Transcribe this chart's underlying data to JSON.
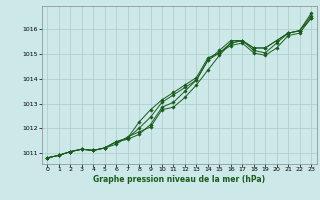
{
  "xlabel": "Graphe pression niveau de la mer (hPa)",
  "background_color": "#cce8e8",
  "grid_color": "#aacccc",
  "line_color": "#1a5c1a",
  "xlim": [
    -0.5,
    23.5
  ],
  "ylim": [
    1010.55,
    1016.95
  ],
  "yticks": [
    1011,
    1012,
    1013,
    1014,
    1015,
    1016
  ],
  "xticks": [
    0,
    1,
    2,
    3,
    4,
    5,
    6,
    7,
    8,
    9,
    10,
    11,
    12,
    13,
    14,
    15,
    16,
    17,
    18,
    19,
    20,
    21,
    22,
    23
  ],
  "series": [
    [
      1010.8,
      1010.9,
      1011.05,
      1011.15,
      1011.1,
      1011.2,
      1011.45,
      1011.55,
      1011.75,
      1012.15,
      1012.85,
      1013.05,
      1013.5,
      1013.95,
      1014.75,
      1015.15,
      1015.55,
      1015.55,
      1015.25,
      1015.25,
      1015.55,
      1015.85,
      1015.95,
      1016.55
    ],
    [
      1010.8,
      1010.9,
      1011.05,
      1011.15,
      1011.1,
      1011.2,
      1011.45,
      1011.6,
      1012.0,
      1012.45,
      1013.05,
      1013.35,
      1013.65,
      1013.95,
      1014.75,
      1015.05,
      1015.45,
      1015.55,
      1015.15,
      1015.05,
      1015.45,
      1015.85,
      1015.95,
      1016.45
    ],
    [
      1010.8,
      1010.9,
      1011.05,
      1011.15,
      1011.1,
      1011.2,
      1011.45,
      1011.6,
      1012.25,
      1012.75,
      1013.15,
      1013.45,
      1013.75,
      1014.05,
      1014.85,
      1015.05,
      1015.35,
      1015.45,
      1015.05,
      1014.95,
      1015.25,
      1015.75,
      1015.85,
      1016.45
    ],
    [
      1010.8,
      1010.9,
      1011.05,
      1011.15,
      1011.1,
      1011.2,
      1011.35,
      1011.65,
      1011.85,
      1012.05,
      1012.75,
      1012.85,
      1013.25,
      1013.75,
      1014.35,
      1014.95,
      1015.45,
      1015.55,
      1015.25,
      1015.25,
      1015.55,
      1015.85,
      1015.95,
      1016.65
    ]
  ]
}
